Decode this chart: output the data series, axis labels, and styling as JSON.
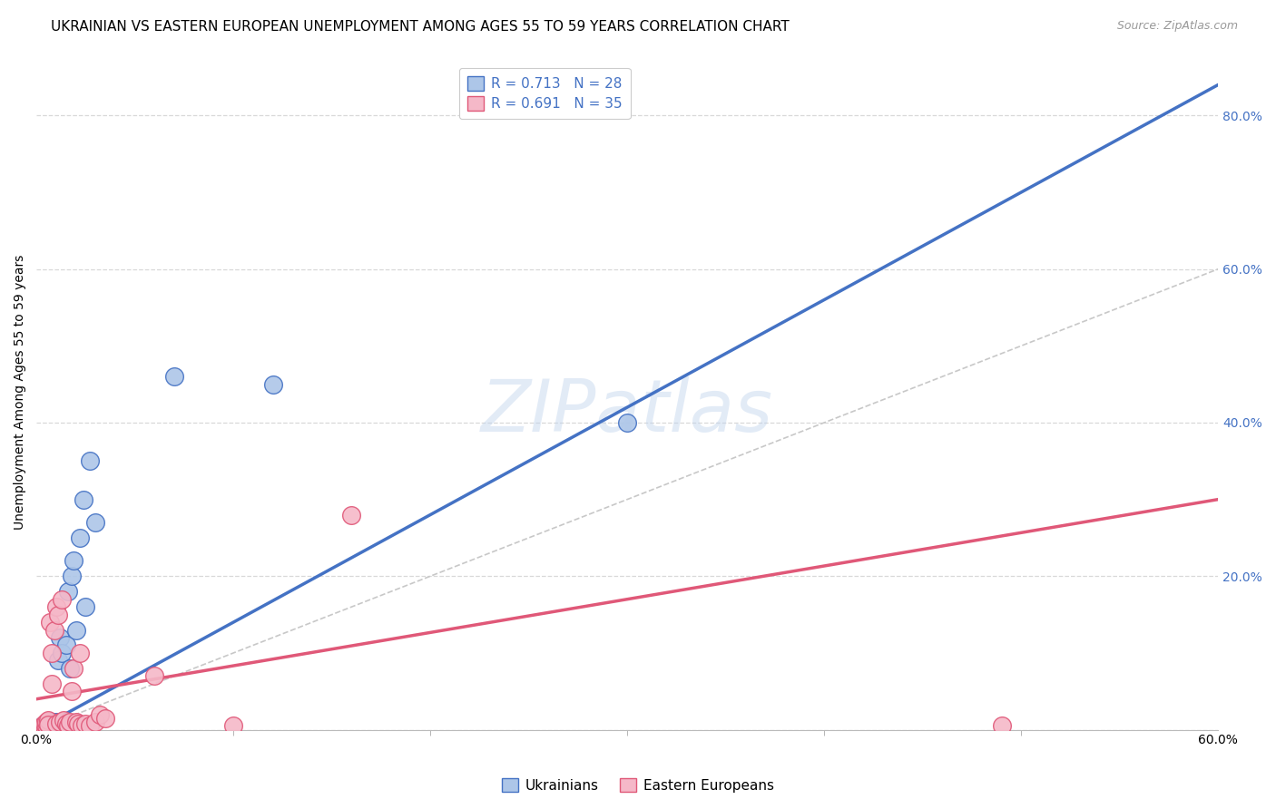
{
  "title": "UKRAINIAN VS EASTERN EUROPEAN UNEMPLOYMENT AMONG AGES 55 TO 59 YEARS CORRELATION CHART",
  "source": "Source: ZipAtlas.com",
  "ylabel": "Unemployment Among Ages 55 to 59 years",
  "xlim": [
    0.0,
    0.6
  ],
  "ylim": [
    0.0,
    0.88
  ],
  "xticks_major": [
    0.0,
    0.6
  ],
  "xticks_minor": [
    0.1,
    0.2,
    0.3,
    0.4,
    0.5
  ],
  "yticks_right": [
    0.2,
    0.4,
    0.6,
    0.8
  ],
  "ytick_labels_right": [
    "20.0%",
    "40.0%",
    "60.0%",
    "80.0%"
  ],
  "yticks_gridlines": [
    0.0,
    0.2,
    0.4,
    0.6,
    0.8
  ],
  "blue_R": 0.713,
  "blue_N": 28,
  "pink_R": 0.691,
  "pink_N": 35,
  "blue_scatter_color": "#adc6e8",
  "blue_line_color": "#4472c4",
  "pink_scatter_color": "#f5b8c8",
  "pink_line_color": "#e05878",
  "ref_line_color": "#c8c8c8",
  "background_color": "#ffffff",
  "grid_color": "#d8d8d8",
  "legend_label_blue": "Ukrainians",
  "legend_label_pink": "Eastern Europeans",
  "blue_scatter_x": [
    0.003,
    0.004,
    0.005,
    0.006,
    0.006,
    0.007,
    0.007,
    0.008,
    0.008,
    0.009,
    0.01,
    0.011,
    0.012,
    0.013,
    0.015,
    0.016,
    0.017,
    0.018,
    0.019,
    0.02,
    0.022,
    0.024,
    0.025,
    0.027,
    0.03,
    0.07,
    0.12,
    0.3
  ],
  "blue_scatter_y": [
    0.005,
    0.003,
    0.006,
    0.004,
    0.008,
    0.005,
    0.007,
    0.01,
    0.006,
    0.008,
    0.01,
    0.09,
    0.12,
    0.1,
    0.11,
    0.18,
    0.08,
    0.2,
    0.22,
    0.13,
    0.25,
    0.3,
    0.16,
    0.35,
    0.27,
    0.46,
    0.45,
    0.4
  ],
  "pink_scatter_x": [
    0.003,
    0.004,
    0.004,
    0.005,
    0.005,
    0.006,
    0.006,
    0.007,
    0.008,
    0.008,
    0.009,
    0.01,
    0.01,
    0.011,
    0.012,
    0.013,
    0.014,
    0.015,
    0.016,
    0.017,
    0.018,
    0.019,
    0.02,
    0.021,
    0.022,
    0.023,
    0.025,
    0.027,
    0.03,
    0.032,
    0.035,
    0.06,
    0.1,
    0.16,
    0.49
  ],
  "pink_scatter_y": [
    0.005,
    0.004,
    0.008,
    0.005,
    0.01,
    0.012,
    0.007,
    0.14,
    0.1,
    0.06,
    0.13,
    0.008,
    0.16,
    0.15,
    0.01,
    0.17,
    0.012,
    0.008,
    0.006,
    0.01,
    0.05,
    0.08,
    0.01,
    0.008,
    0.1,
    0.006,
    0.008,
    0.005,
    0.01,
    0.02,
    0.015,
    0.07,
    0.005,
    0.28,
    0.005
  ],
  "blue_trendline": [
    0.0,
    0.0,
    0.6,
    0.84
  ],
  "pink_trendline": [
    0.0,
    0.04,
    0.6,
    0.3
  ],
  "ref_line": [
    0.0,
    0.0,
    0.88,
    0.88
  ],
  "watermark": "ZIPatlas",
  "title_fontsize": 11,
  "axis_label_fontsize": 10,
  "tick_fontsize": 10,
  "legend_fontsize": 11,
  "source_color": "#999999"
}
